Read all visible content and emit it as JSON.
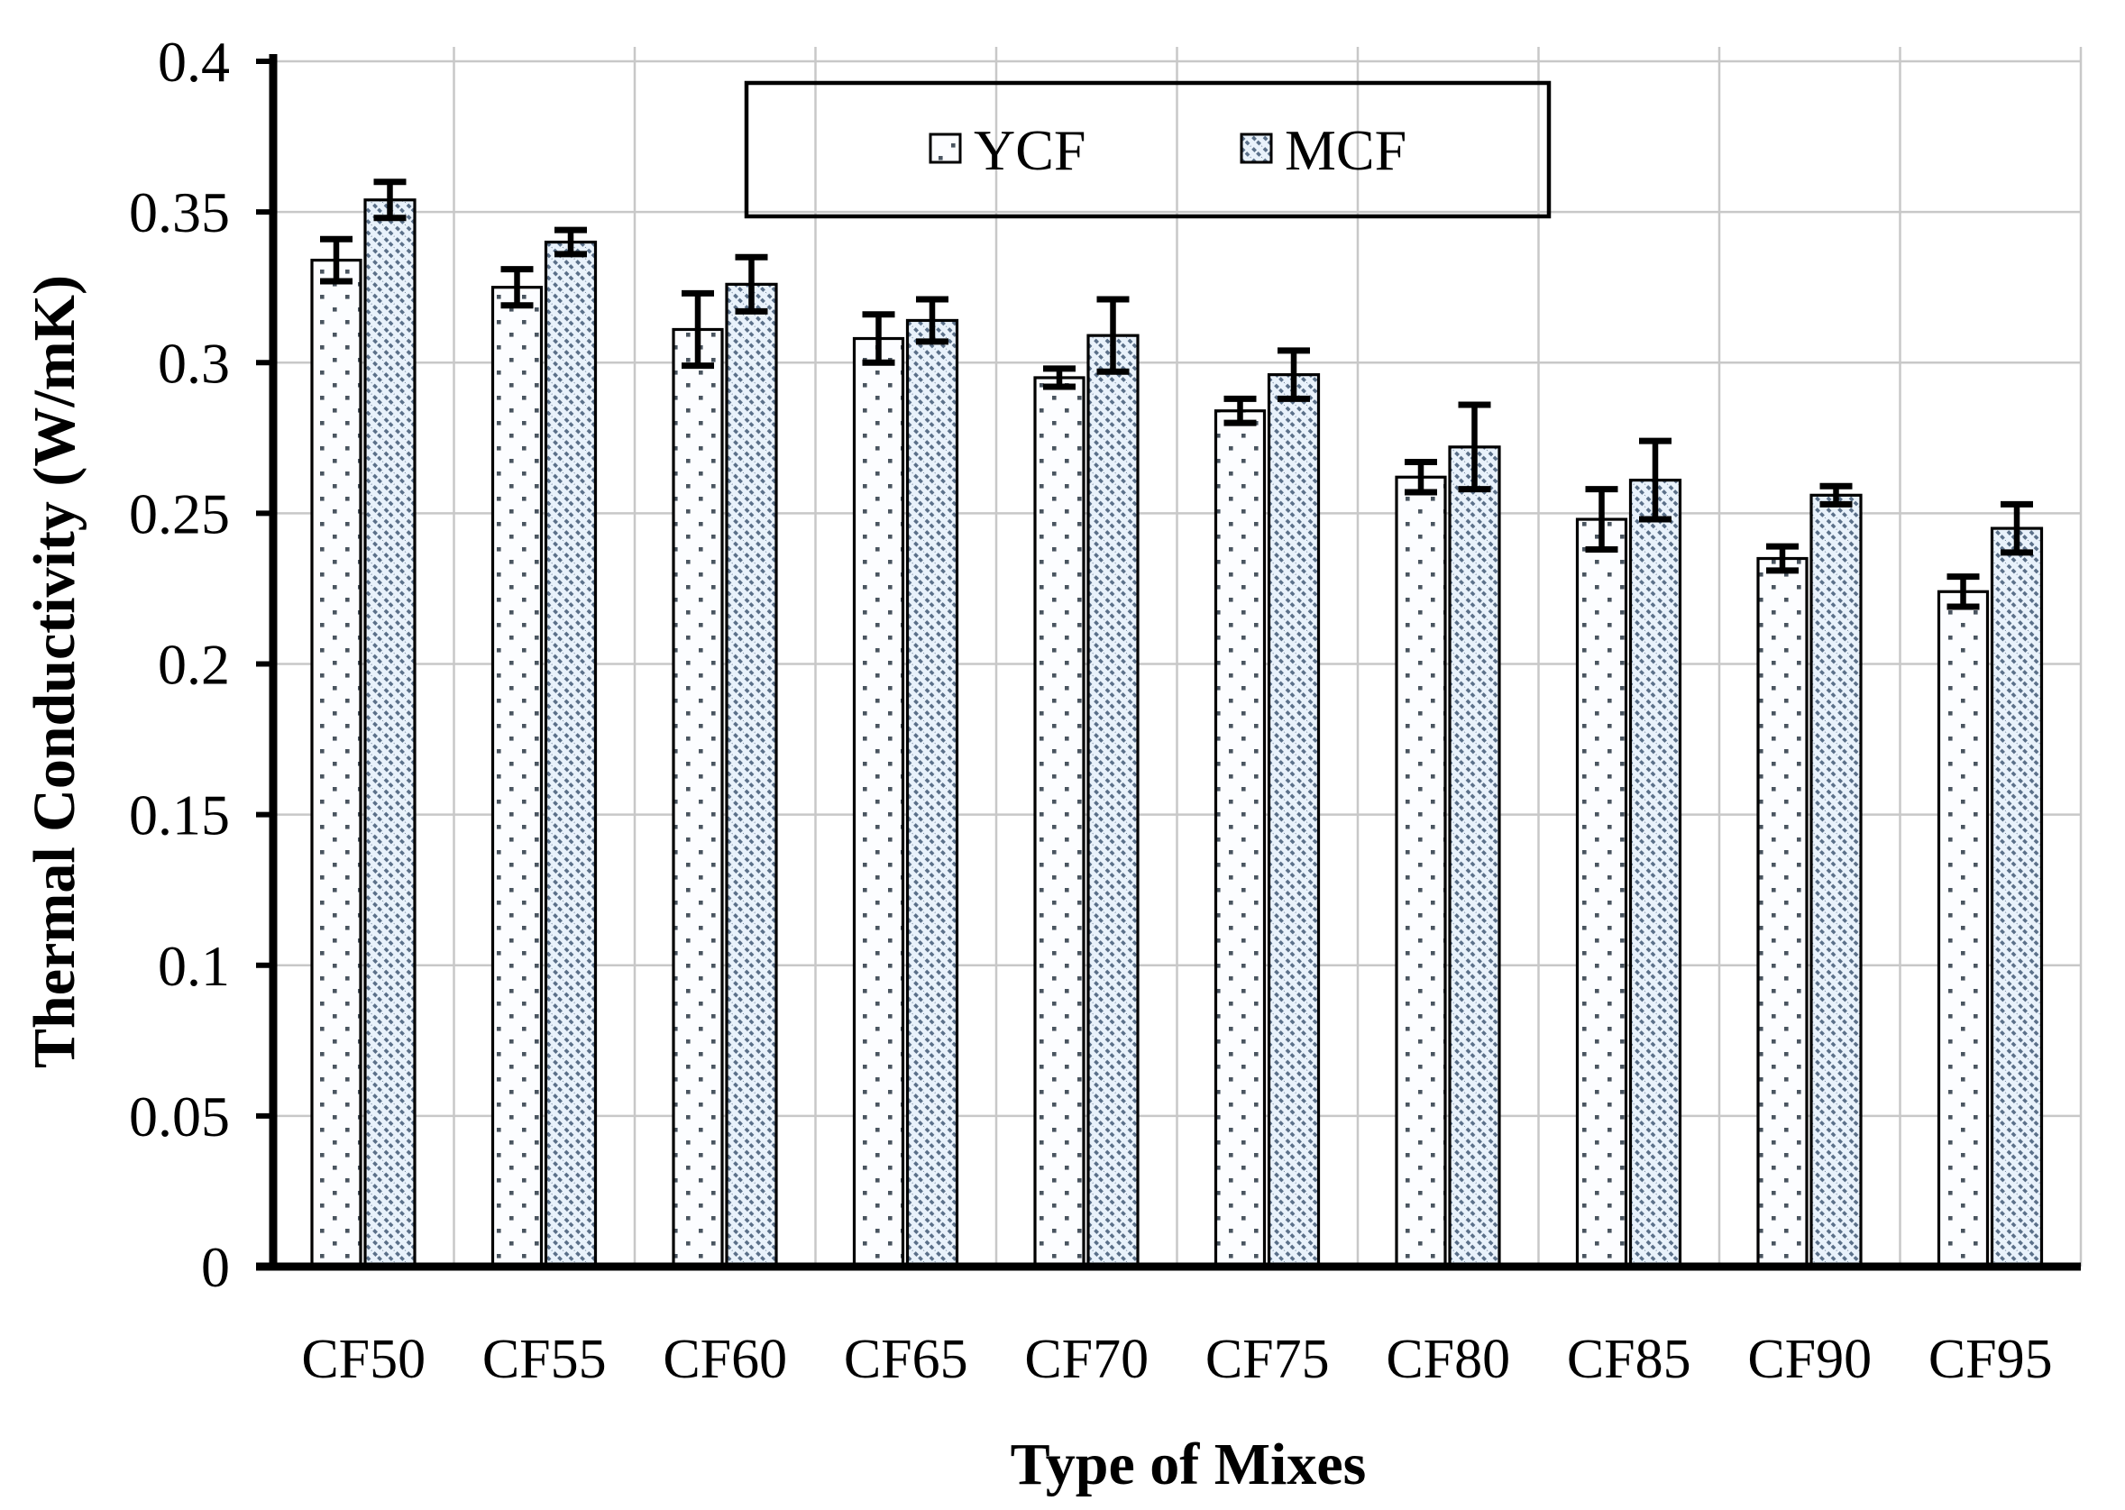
{
  "chart_data": {
    "type": "bar",
    "title": "",
    "xlabel": "Type of Mixes",
    "ylabel": "Thermal Conductivity (W/mK)",
    "categories": [
      "CF50",
      "CF55",
      "CF60",
      "CF65",
      "CF70",
      "CF75",
      "CF80",
      "CF85",
      "CF90",
      "CF95"
    ],
    "series": [
      {
        "name": "YCF",
        "pattern": "dots",
        "values": [
          0.334,
          0.325,
          0.311,
          0.308,
          0.295,
          0.284,
          0.262,
          0.248,
          0.235,
          0.224
        ],
        "errors": [
          0.007,
          0.006,
          0.012,
          0.008,
          0.003,
          0.004,
          0.005,
          0.01,
          0.004,
          0.005
        ]
      },
      {
        "name": "MCF",
        "pattern": "diagonal-hatch",
        "values": [
          0.354,
          0.34,
          0.326,
          0.314,
          0.309,
          0.296,
          0.272,
          0.261,
          0.256,
          0.245
        ],
        "errors": [
          0.006,
          0.004,
          0.009,
          0.007,
          0.012,
          0.008,
          0.014,
          0.013,
          0.003,
          0.008
        ]
      }
    ],
    "ylim": [
      0,
      0.4
    ],
    "ytick_step": 0.05,
    "ytick_labels": [
      "0",
      "0.05",
      "0.1",
      "0.15",
      "0.2",
      "0.25",
      "0.3",
      "0.35",
      "0.4"
    ],
    "grid": true,
    "legend_position": "top-center",
    "colors": {
      "background": "#ffffff",
      "gridline": "#c8c8c8",
      "axis": "#000000",
      "bar_border": "#000000",
      "error_bar": "#000000",
      "ycf_fill": "#fcfdff",
      "ycf_dot": "#4a5560",
      "mcf_fill": "#e9f2fb",
      "mcf_hatch": "#5b7089"
    }
  }
}
